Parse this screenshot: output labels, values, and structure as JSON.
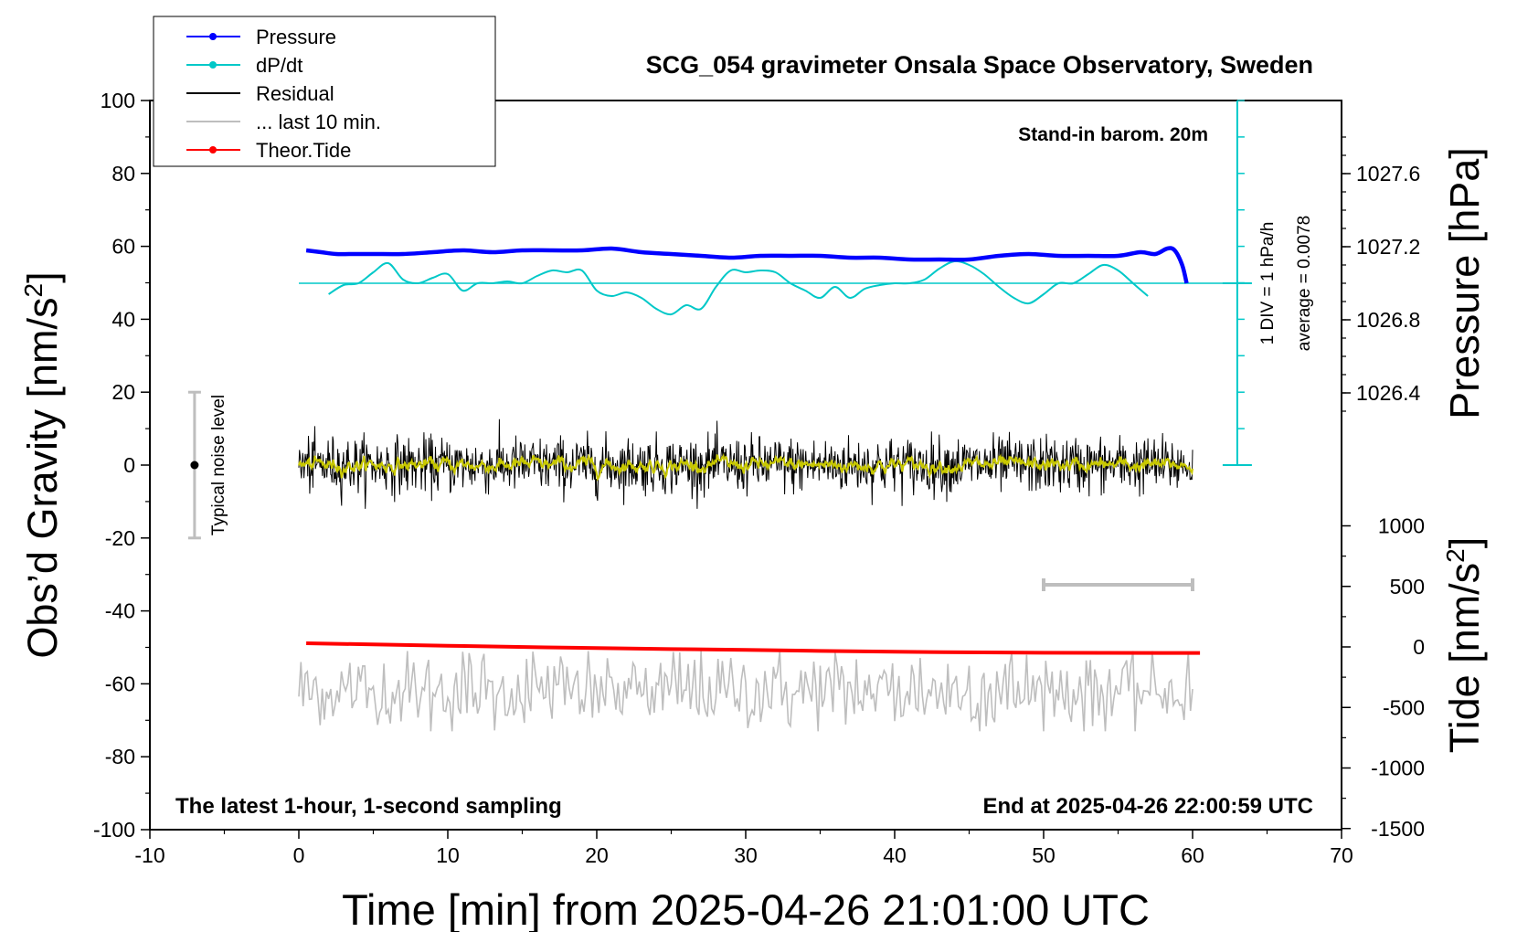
{
  "chart_data": {
    "type": "line",
    "title": "SCG_054 gravimeter Onsala Space Observatory, Sweden",
    "xlabel": "Time [min] from 2025-04-26 21:01:00 UTC",
    "xlim": [
      -10,
      70
    ],
    "x_ticks": [
      "-10",
      "0",
      "10",
      "20",
      "30",
      "40",
      "50",
      "60",
      "70"
    ],
    "left_axis": {
      "label": "Obs’d Gravity [nm/s",
      "label_sup": "2",
      "label_end": "]",
      "ylim": [
        -100,
        100
      ],
      "ticks": [
        "-100",
        "-80",
        "-60",
        "-40",
        "-20",
        "0",
        "20",
        "40",
        "60",
        "80",
        "100"
      ]
    },
    "pressure_axis": {
      "label": "Pressure [hPa]",
      "ticks": [
        "1026.4",
        "1026.8",
        "1027.2",
        "1027.6"
      ],
      "tick_values": [
        1026.4,
        1026.8,
        1027.2,
        1027.6
      ]
    },
    "tide_axis": {
      "label": "Tide [nm/s",
      "label_sup": "2",
      "label_end": "]",
      "ticks": [
        "-1500",
        "-1000",
        "-500",
        "0",
        "500",
        "1000"
      ],
      "tick_values": [
        -1500,
        -1000,
        -500,
        0,
        500,
        1000
      ]
    },
    "legend": {
      "placement": "top-left",
      "entries": [
        {
          "name": "Pressure",
          "color": "#0000ff",
          "marker": "dot"
        },
        {
          "name": "dP/dt",
          "color": "#00c8c8",
          "marker": "dot"
        },
        {
          "name": "Residual",
          "color": "#000000",
          "marker": "none"
        },
        {
          "name": "... last 10 min.",
          "color": "#bebebe",
          "marker": "none"
        },
        {
          "name": "Theor.Tide",
          "color": "#ff0000",
          "marker": "dot"
        }
      ]
    },
    "annotations": {
      "barometer": "Stand-in barom. 20m",
      "scale_div": "1 DIV = 1 hPa/h",
      "average": "average = 0.0078",
      "noise": "Typical noise level",
      "bottom_left": "The latest 1-hour, 1-second sampling",
      "bottom_right": "End at 2025-04-26 22:00:59 UTC"
    },
    "noise_bar": {
      "x": -7,
      "center": 0,
      "half_range": 20
    },
    "last10_bar": {
      "x_start": 50,
      "x_end": 60
    },
    "dpdt_zero_level_hPa": 1027.0,
    "series": [
      {
        "name": "Pressure",
        "axis": "pressure",
        "color": "#0000ff",
        "x": [
          0.5,
          1.5,
          2.5,
          3.5,
          5,
          7,
          9,
          11,
          13,
          15,
          17,
          19,
          21,
          23,
          25,
          27,
          29,
          31,
          33,
          35,
          37,
          39,
          41,
          43,
          45,
          47,
          49,
          51,
          53,
          55,
          56.5,
          57.5,
          58.3,
          58.8,
          59.3,
          59.6
        ],
        "values": [
          1027.18,
          1027.17,
          1027.16,
          1027.16,
          1027.16,
          1027.16,
          1027.17,
          1027.18,
          1027.17,
          1027.18,
          1027.18,
          1027.18,
          1027.19,
          1027.17,
          1027.16,
          1027.15,
          1027.14,
          1027.15,
          1027.15,
          1027.15,
          1027.14,
          1027.14,
          1027.13,
          1027.13,
          1027.13,
          1027.15,
          1027.16,
          1027.15,
          1027.15,
          1027.15,
          1027.17,
          1027.16,
          1027.19,
          1027.18,
          1027.1,
          1027.0
        ]
      },
      {
        "name": "dP/dt",
        "axis": "pressure",
        "color": "#00c8c8",
        "x": [
          2,
          3,
          4,
          5,
          6,
          7,
          8,
          9,
          10,
          11,
          12,
          13,
          14,
          15,
          16,
          17,
          18,
          19,
          20,
          21,
          22,
          23,
          24,
          25,
          26,
          27,
          28,
          29,
          30,
          31,
          32,
          33,
          34,
          35,
          36,
          37,
          38,
          39,
          40,
          41,
          42,
          43,
          44,
          45,
          46,
          47,
          48,
          49,
          50,
          51,
          52,
          53,
          54,
          55,
          56,
          57
        ],
        "values": [
          1026.94,
          1026.99,
          1027.0,
          1027.06,
          1027.11,
          1027.02,
          1027.0,
          1027.03,
          1027.05,
          1026.96,
          1027.0,
          1027.0,
          1027.01,
          1027.0,
          1027.04,
          1027.07,
          1027.06,
          1027.07,
          1026.96,
          1026.93,
          1026.95,
          1026.92,
          1026.86,
          1026.83,
          1026.88,
          1026.86,
          1026.98,
          1027.07,
          1027.06,
          1027.07,
          1027.06,
          1027.0,
          1026.96,
          1026.92,
          1026.98,
          1026.92,
          1026.97,
          1026.99,
          1027.0,
          1027.0,
          1027.02,
          1027.08,
          1027.12,
          1027.1,
          1027.05,
          1026.98,
          1026.92,
          1026.89,
          1026.94,
          1027.0,
          1027.0,
          1027.05,
          1027.1,
          1027.07,
          1027.0,
          1026.93
        ]
      },
      {
        "name": "Residual",
        "axis": "gravity",
        "color": "#000000",
        "x_range": [
          0,
          60
        ],
        "typical_amplitude": 7,
        "max_excursion": [
          -12,
          13
        ]
      },
      {
        "name": "Residual (smoothed)",
        "axis": "gravity",
        "color": "#c8c800",
        "x_range": [
          0,
          60
        ],
        "typical_amplitude": 1.5
      },
      {
        "name": "... last 10 min.",
        "axis": "gravity",
        "color": "#bebebe",
        "x_range": [
          0,
          60
        ],
        "center": -62,
        "typical_amplitude": 6
      },
      {
        "name": "Theor.Tide",
        "axis": "tide",
        "color": "#ff0000",
        "x": [
          0.5,
          10,
          20,
          30,
          40,
          50,
          60.5
        ],
        "values": [
          30,
          10,
          -10,
          -25,
          -40,
          -48,
          -50
        ]
      }
    ]
  }
}
